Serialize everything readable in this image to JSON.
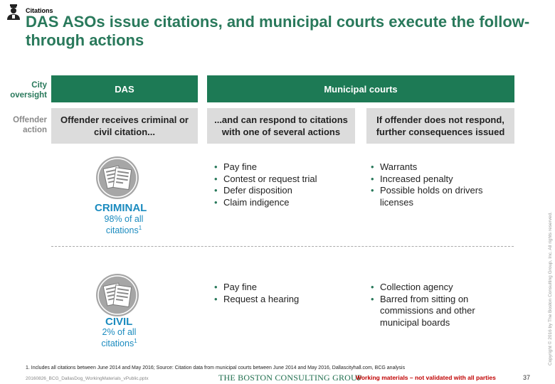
{
  "tracker": {
    "label": "Citations",
    "icon": "person-icon"
  },
  "title": "DAS ASOs issue citations, and municipal courts execute the follow-through actions",
  "rows": {
    "city_oversight": "City oversight",
    "offender_action": "Offender action"
  },
  "headers": {
    "das": "DAS",
    "courts": "Municipal courts"
  },
  "actions": {
    "receive": "Offender receives criminal or civil citation...",
    "respond": "...and can respond to citations with one of several actions",
    "no_response": "If offender does not respond, further consequences issued"
  },
  "criminal": {
    "title": "CRIMINAL",
    "share": "98% of all",
    "share2": "citations",
    "footnote_ref": "1",
    "icon": "document-icon",
    "responses": [
      "Pay fine",
      "Contest or request trial",
      "Defer disposition",
      "Claim indigence"
    ],
    "consequences": [
      "Warrants",
      "Increased penalty",
      "Possible holds on drivers licenses"
    ]
  },
  "civil": {
    "title": "CIVIL",
    "share": "2% of all",
    "share2": "citations",
    "footnote_ref": "1",
    "icon": "document-icon",
    "responses": [
      "Pay fine",
      "Request a hearing"
    ],
    "consequences": [
      "Collection agency",
      "Barred from sitting on commissions and other municipal boards"
    ]
  },
  "footer": {
    "footnote": "1. Includes all citations between June 2014 and May 2016; Source: Citation data from municipal courts between June 2014 and May 2016, Dallascityhall.com, BCG analysis",
    "filename": "20160826_BCG_DallasDog_WorkingMaterials_vPublic.pptx",
    "logo": "THE BOSTON CONSULTING GROUP",
    "working": "Working materials – not validated with all parties",
    "page": "37",
    "copyright": "Copyright © 2016 by The Boston Consulting Group, Inc. All rights reserved."
  },
  "colors": {
    "title_green": "#29795b",
    "bar_green": "#1d7a55",
    "accent_blue": "#1b8bbf",
    "warning_red": "#c00000"
  }
}
